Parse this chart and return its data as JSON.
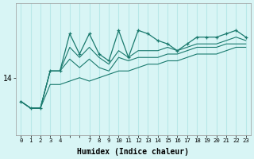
{
  "xlabel": "Humidex (Indice chaleur)",
  "background_color": "#d8f5f5",
  "line_color": "#1a7a6e",
  "grid_color": "#b8e8e8",
  "x_indices": [
    0,
    1,
    2,
    3,
    4,
    5,
    6,
    7,
    8,
    9,
    10,
    11,
    12,
    13,
    14,
    15,
    16,
    17,
    18,
    19,
    20,
    21,
    22,
    23
  ],
  "x_labels": [
    "0",
    "1",
    "2",
    "3",
    "4",
    "",
    "",
    "7",
    "8",
    "9",
    "10",
    "11",
    "12",
    "13",
    "14",
    "15",
    "16",
    "17",
    "18",
    "19",
    "20",
    "21",
    "22",
    "23"
  ],
  "top_y": [
    13.3,
    13.1,
    13.1,
    14.2,
    14.2,
    15.3,
    14.7,
    15.3,
    14.7,
    14.5,
    15.4,
    14.6,
    15.4,
    15.3,
    15.1,
    15.0,
    14.8,
    15.0,
    15.2,
    15.2,
    15.2,
    15.3,
    15.4,
    15.2
  ],
  "mid_y": [
    13.3,
    13.1,
    13.1,
    14.2,
    14.2,
    14.9,
    14.6,
    14.9,
    14.6,
    14.4,
    14.8,
    14.6,
    14.8,
    14.8,
    14.8,
    14.9,
    14.8,
    14.9,
    15.0,
    15.0,
    15.0,
    15.1,
    15.2,
    15.1
  ],
  "mid2_y": [
    13.3,
    13.1,
    13.1,
    14.2,
    14.2,
    14.55,
    14.3,
    14.55,
    14.3,
    14.2,
    14.6,
    14.5,
    14.6,
    14.6,
    14.6,
    14.7,
    14.7,
    14.8,
    14.9,
    14.9,
    14.9,
    15.0,
    15.0,
    15.0
  ],
  "bot_y": [
    13.3,
    13.1,
    13.1,
    13.8,
    13.8,
    13.9,
    14.0,
    13.9,
    14.0,
    14.1,
    14.2,
    14.2,
    14.3,
    14.4,
    14.4,
    14.5,
    14.5,
    14.6,
    14.7,
    14.7,
    14.7,
    14.8,
    14.9,
    14.9
  ],
  "ylim": [
    12.3,
    16.2
  ],
  "ytick_val": 14.0,
  "ytick_label": "14"
}
